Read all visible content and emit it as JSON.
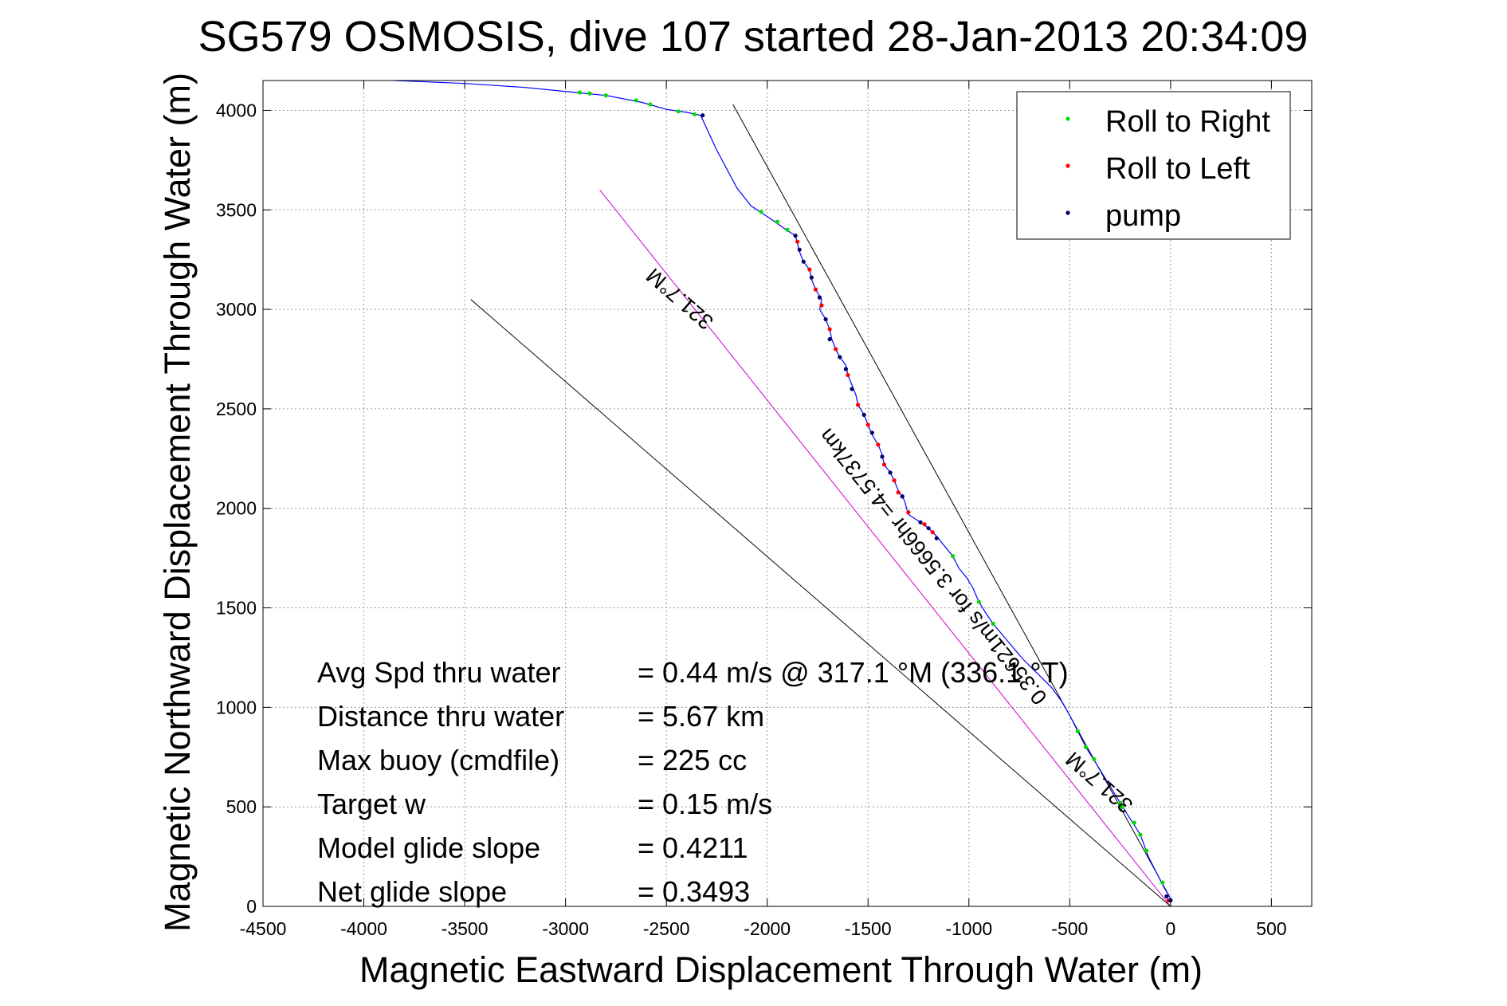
{
  "chart_data": {
    "type": "line",
    "title": "SG579 OSMOSIS, dive 107 started 28-Jan-2013 20:34:09",
    "xlabel": "Magnetic Eastward Displacement Through Water (m)",
    "ylabel": "Magnetic Northward Displacement Through Water (m)",
    "xlim": [
      -4500,
      700
    ],
    "ylim": [
      0,
      4150
    ],
    "xticks": [
      -4500,
      -4000,
      -3500,
      -3000,
      -2500,
      -2000,
      -1500,
      -1000,
      -500,
      0,
      500
    ],
    "yticks": [
      0,
      500,
      1000,
      1500,
      2000,
      2500,
      3000,
      3500,
      4000
    ],
    "grid": true,
    "legend_position": "top-right",
    "legend": [
      {
        "label": "Roll to Right",
        "color": "#00dd00"
      },
      {
        "label": "Roll to Left",
        "color": "#ff0000"
      },
      {
        "label": "pump",
        "color": "#000066"
      }
    ],
    "track": {
      "color": "#0000ff",
      "points": [
        [
          -3850,
          4150
        ],
        [
          -3500,
          4135
        ],
        [
          -3200,
          4115
        ],
        [
          -2950,
          4090
        ],
        [
          -2800,
          4075
        ],
        [
          -2620,
          4040
        ],
        [
          -2500,
          4005
        ],
        [
          -2400,
          3990
        ],
        [
          -2330,
          3975
        ],
        [
          -2250,
          3800
        ],
        [
          -2150,
          3610
        ],
        [
          -2080,
          3520
        ],
        [
          -1990,
          3460
        ],
        [
          -1920,
          3410
        ],
        [
          -1860,
          3370
        ],
        [
          -1840,
          3290
        ],
        [
          -1820,
          3240
        ],
        [
          -1790,
          3200
        ],
        [
          -1780,
          3150
        ],
        [
          -1760,
          3100
        ],
        [
          -1730,
          3050
        ],
        [
          -1740,
          3000
        ],
        [
          -1710,
          2950
        ],
        [
          -1690,
          2900
        ],
        [
          -1680,
          2850
        ],
        [
          -1660,
          2800
        ],
        [
          -1640,
          2760
        ],
        [
          -1610,
          2720
        ],
        [
          -1600,
          2670
        ],
        [
          -1580,
          2620
        ],
        [
          -1560,
          2570
        ],
        [
          -1550,
          2520
        ],
        [
          -1520,
          2470
        ],
        [
          -1500,
          2420
        ],
        [
          -1480,
          2370
        ],
        [
          -1450,
          2320
        ],
        [
          -1430,
          2270
        ],
        [
          -1420,
          2220
        ],
        [
          -1390,
          2180
        ],
        [
          -1370,
          2140
        ],
        [
          -1350,
          2090
        ],
        [
          -1320,
          2040
        ],
        [
          -1300,
          1970
        ],
        [
          -1240,
          1930
        ],
        [
          -1200,
          1900
        ],
        [
          -1160,
          1860
        ],
        [
          -1120,
          1810
        ],
        [
          -1080,
          1760
        ],
        [
          -1050,
          1700
        ],
        [
          -1010,
          1650
        ],
        [
          -980,
          1600
        ],
        [
          -950,
          1530
        ],
        [
          -920,
          1480
        ],
        [
          -880,
          1420
        ],
        [
          -830,
          1360
        ],
        [
          -780,
          1300
        ],
        [
          -730,
          1240
        ],
        [
          -660,
          1170
        ],
        [
          -590,
          1100
        ],
        [
          -540,
          1030
        ],
        [
          -500,
          960
        ],
        [
          -460,
          880
        ],
        [
          -420,
          800
        ],
        [
          -370,
          720
        ],
        [
          -310,
          620
        ],
        [
          -250,
          520
        ],
        [
          -200,
          440
        ],
        [
          -150,
          360
        ],
        [
          -110,
          250
        ],
        [
          -70,
          170
        ],
        [
          -30,
          90
        ],
        [
          0,
          40
        ]
      ]
    },
    "rays": [
      {
        "color": "#000000",
        "points": [
          [
            -2170,
            4030
          ],
          [
            0,
            40
          ]
        ]
      },
      {
        "color": "#cc00cc",
        "points": [
          [
            -2830,
            3600
          ],
          [
            0,
            0
          ]
        ]
      },
      {
        "color": "#000000",
        "points": [
          [
            -3470,
            3050
          ],
          [
            0,
            0
          ]
        ]
      }
    ],
    "ray_labels": [
      {
        "text": "321.7°M",
        "x": -2410,
        "y": 3080,
        "angle_deg": 221,
        "size": 27
      },
      {
        "text": "0.35621m/s for 3.5666hr =4.5737km",
        "x": -1150,
        "y": 1730,
        "angle_deg": 231,
        "size": 27
      },
      {
        "text": "321.7°M",
        "x": -330,
        "y": 650,
        "angle_deg": 221,
        "size": 27
      }
    ],
    "markers": {
      "roll_right": [
        [
          -2930,
          4090
        ],
        [
          -2880,
          4085
        ],
        [
          -2800,
          4075
        ],
        [
          -2650,
          4050
        ],
        [
          -2580,
          4030
        ],
        [
          -2440,
          3995
        ],
        [
          -2360,
          3980
        ],
        [
          -2030,
          3490
        ],
        [
          -1950,
          3440
        ],
        [
          -1900,
          3400
        ],
        [
          -1080,
          1760
        ],
        [
          -950,
          1530
        ],
        [
          -880,
          1420
        ],
        [
          -460,
          880
        ],
        [
          -420,
          800
        ],
        [
          -380,
          740
        ],
        [
          -250,
          520
        ],
        [
          -240,
          500
        ],
        [
          -180,
          420
        ],
        [
          -150,
          360
        ],
        [
          -120,
          280
        ],
        [
          -40,
          120
        ]
      ],
      "roll_left": [
        [
          -1850,
          3340
        ],
        [
          -1790,
          3200
        ],
        [
          -1760,
          3100
        ],
        [
          -1730,
          3020
        ],
        [
          -1690,
          2900
        ],
        [
          -1660,
          2800
        ],
        [
          -1600,
          2670
        ],
        [
          -1550,
          2520
        ],
        [
          -1500,
          2420
        ],
        [
          -1450,
          2320
        ],
        [
          -1420,
          2220
        ],
        [
          -1370,
          2140
        ],
        [
          -1350,
          2080
        ],
        [
          -1300,
          1980
        ],
        [
          -1220,
          1920
        ],
        [
          -1180,
          1880
        ],
        [
          -10,
          30
        ]
      ],
      "pump": [
        [
          -2320,
          3975
        ],
        [
          -1860,
          3370
        ],
        [
          -1840,
          3300
        ],
        [
          -1820,
          3240
        ],
        [
          -1780,
          3160
        ],
        [
          -1740,
          3060
        ],
        [
          -1710,
          2950
        ],
        [
          -1690,
          2850
        ],
        [
          -1640,
          2760
        ],
        [
          -1610,
          2700
        ],
        [
          -1580,
          2600
        ],
        [
          -1520,
          2470
        ],
        [
          -1480,
          2380
        ],
        [
          -1430,
          2260
        ],
        [
          -1390,
          2180
        ],
        [
          -1330,
          2060
        ],
        [
          -1240,
          1930
        ],
        [
          -1200,
          1900
        ],
        [
          -1160,
          1850
        ],
        [
          -20,
          50
        ],
        [
          0,
          30
        ]
      ]
    },
    "stats": [
      {
        "label": "Avg Spd thru water",
        "value": "=  0.44 m/s @ 317.1 °M (336.1 °T)"
      },
      {
        "label": "Distance thru water",
        "value": "=  5.67 km"
      },
      {
        "label": "Max buoy (cmdfile)",
        "value": "= 225 cc"
      },
      {
        "label": "Target w",
        "value": "= 0.15 m/s"
      },
      {
        "label": "Model glide slope",
        "value": "= 0.4211"
      },
      {
        "label": "Net glide slope",
        "value": "= 0.3493"
      }
    ]
  }
}
